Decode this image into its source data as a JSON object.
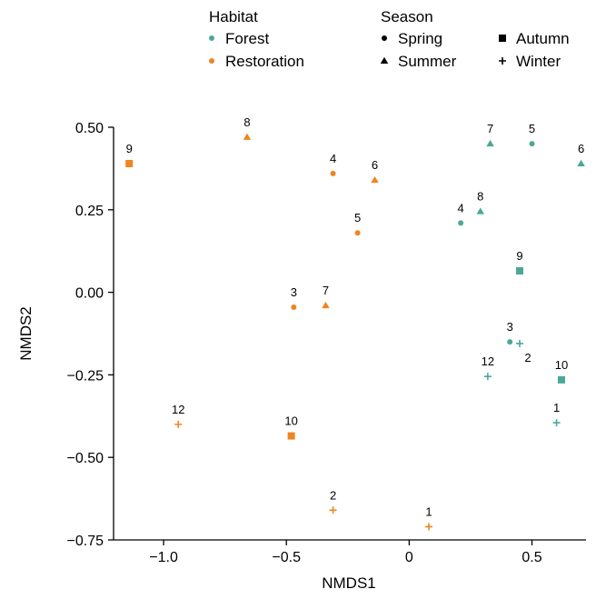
{
  "chart_data": {
    "type": "scatter",
    "title": "",
    "xlabel": "NMDS1",
    "ylabel": "NMDS2",
    "xlim": [
      -1.22,
      0.72
    ],
    "ylim": [
      -0.75,
      0.5
    ],
    "x_ticks": [
      -1.0,
      -0.5,
      0.0,
      0.5
    ],
    "x_tick_labels": [
      "−1.0",
      "−0.5",
      "0",
      "0.5"
    ],
    "y_ticks": [
      0.5,
      0.25,
      0.0,
      -0.25,
      -0.5,
      -0.75
    ],
    "y_tick_labels": [
      "0.50",
      "0.25",
      "0.00",
      "−0.25",
      "−0.50",
      "−0.75"
    ],
    "grid": false,
    "legend_position": "top",
    "legend": {
      "habitat_title": "Habitat",
      "habitat_entries": [
        {
          "label": "Forest",
          "color": "#4aa897"
        },
        {
          "label": "Restoration",
          "color": "#f0841f"
        }
      ],
      "season_title": "Season",
      "season_entries": [
        {
          "label": "Spring",
          "shape": "circle"
        },
        {
          "label": "Summer",
          "shape": "triangle"
        },
        {
          "label": "Autumn",
          "shape": "square"
        },
        {
          "label": "Winter",
          "shape": "plus"
        }
      ]
    },
    "colors": {
      "Forest": "#4aa897",
      "Restoration": "#f0841f"
    },
    "points": [
      {
        "label": "9",
        "habitat": "Restoration",
        "season": "Autumn",
        "x": -1.14,
        "y": 0.39
      },
      {
        "label": "8",
        "habitat": "Restoration",
        "season": "Summer",
        "x": -0.66,
        "y": 0.47
      },
      {
        "label": "4",
        "habitat": "Restoration",
        "season": "Spring",
        "x": -0.31,
        "y": 0.36
      },
      {
        "label": "6",
        "habitat": "Restoration",
        "season": "Summer",
        "x": -0.14,
        "y": 0.34
      },
      {
        "label": "5",
        "habitat": "Restoration",
        "season": "Spring",
        "x": -0.21,
        "y": 0.18
      },
      {
        "label": "3",
        "habitat": "Restoration",
        "season": "Spring",
        "x": -0.47,
        "y": -0.045
      },
      {
        "label": "7",
        "habitat": "Restoration",
        "season": "Summer",
        "x": -0.34,
        "y": -0.04
      },
      {
        "label": "12",
        "habitat": "Restoration",
        "season": "Winter",
        "x": -0.94,
        "y": -0.4
      },
      {
        "label": "10",
        "habitat": "Restoration",
        "season": "Autumn",
        "x": -0.48,
        "y": -0.435
      },
      {
        "label": "2",
        "habitat": "Restoration",
        "season": "Winter",
        "x": -0.31,
        "y": -0.66
      },
      {
        "label": "1",
        "habitat": "Restoration",
        "season": "Winter",
        "x": 0.08,
        "y": -0.71
      },
      {
        "label": "7",
        "habitat": "Forest",
        "season": "Summer",
        "x": 0.33,
        "y": 0.45
      },
      {
        "label": "5",
        "habitat": "Forest",
        "season": "Spring",
        "x": 0.5,
        "y": 0.45
      },
      {
        "label": "6",
        "habitat": "Forest",
        "season": "Summer",
        "x": 0.7,
        "y": 0.39
      },
      {
        "label": "4",
        "habitat": "Forest",
        "season": "Spring",
        "x": 0.21,
        "y": 0.21
      },
      {
        "label": "8",
        "habitat": "Forest",
        "season": "Summer",
        "x": 0.29,
        "y": 0.245
      },
      {
        "label": "9",
        "habitat": "Forest",
        "season": "Autumn",
        "x": 0.45,
        "y": 0.065
      },
      {
        "label": "3",
        "habitat": "Forest",
        "season": "Spring",
        "x": 0.41,
        "y": -0.15
      },
      {
        "label": "2",
        "habitat": "Forest",
        "season": "Winter",
        "x": 0.45,
        "y": -0.155
      },
      {
        "label": "12",
        "habitat": "Forest",
        "season": "Winter",
        "x": 0.32,
        "y": -0.255
      },
      {
        "label": "10",
        "habitat": "Forest",
        "season": "Autumn",
        "x": 0.62,
        "y": -0.265
      },
      {
        "label": "1",
        "habitat": "Forest",
        "season": "Winter",
        "x": 0.6,
        "y": -0.395
      }
    ]
  }
}
